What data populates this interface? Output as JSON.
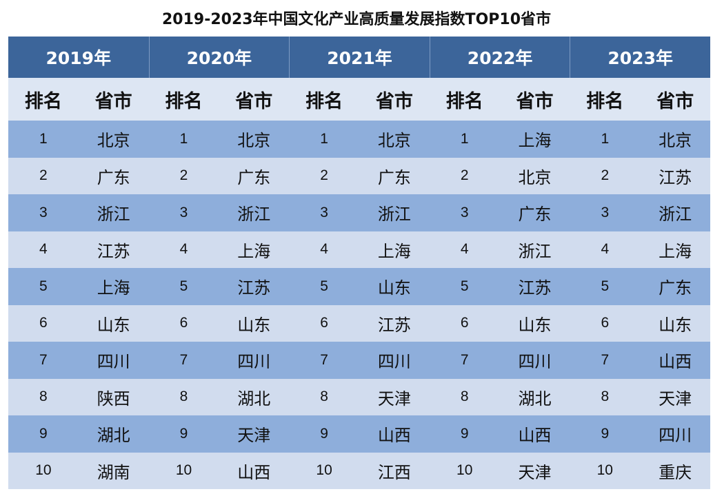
{
  "title": "2019-2023年中国文化产业高质量发展指数TOP10省市",
  "table": {
    "years": [
      "2019年",
      "2020年",
      "2021年",
      "2022年",
      "2023年"
    ],
    "subheader": [
      "排名",
      "省市",
      "排名",
      "省市",
      "排名",
      "省市",
      "排名",
      "省市",
      "排名",
      "省市"
    ],
    "rows": [
      [
        1,
        "北京",
        1,
        "北京",
        1,
        "北京",
        1,
        "上海",
        1,
        "北京"
      ],
      [
        2,
        "广东",
        2,
        "广东",
        2,
        "广东",
        2,
        "北京",
        2,
        "江苏"
      ],
      [
        3,
        "浙江",
        3,
        "浙江",
        3,
        "浙江",
        3,
        "广东",
        3,
        "浙江"
      ],
      [
        4,
        "江苏",
        4,
        "上海",
        4,
        "上海",
        4,
        "浙江",
        4,
        "上海"
      ],
      [
        5,
        "上海",
        5,
        "江苏",
        5,
        "山东",
        5,
        "江苏",
        5,
        "广东"
      ],
      [
        6,
        "山东",
        6,
        "山东",
        6,
        "江苏",
        6,
        "山东",
        6,
        "山东"
      ],
      [
        7,
        "四川",
        7,
        "四川",
        7,
        "四川",
        7,
        "四川",
        7,
        "山西"
      ],
      [
        8,
        "陕西",
        8,
        "湖北",
        8,
        "天津",
        8,
        "湖北",
        8,
        "天津"
      ],
      [
        9,
        "湖北",
        9,
        "天津",
        9,
        "山西",
        9,
        "山西",
        9,
        "四川"
      ],
      [
        10,
        "湖南",
        10,
        "山西",
        10,
        "江西",
        10,
        "天津",
        10,
        "重庆"
      ]
    ]
  }
}
